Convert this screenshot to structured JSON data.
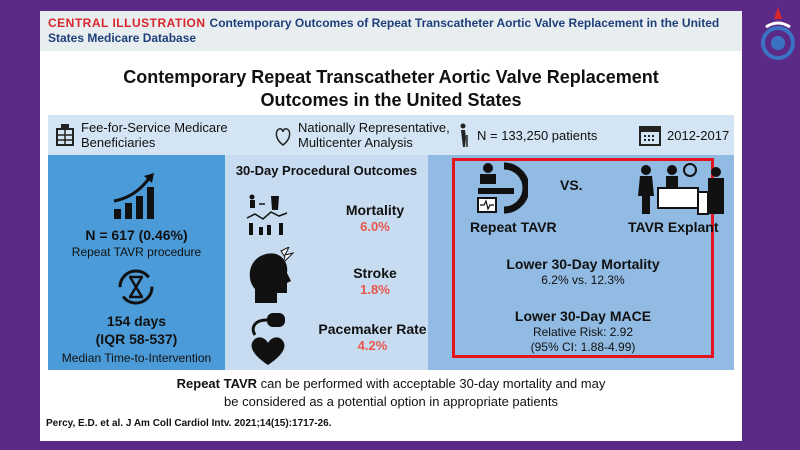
{
  "header": {
    "label": "CENTRAL ILLUSTRATION",
    "title": "Contemporary Outcomes of Repeat Transcatheter Aortic Valve Replacement in the United States Medicare Database"
  },
  "main_title": {
    "line1": "Contemporary Repeat Transcatheter Aortic Valve Replacement",
    "line2": "Outcomes in the United States"
  },
  "info": {
    "medicare_l1": "Fee-for-Service Medicare",
    "medicare_l2": "Beneficiaries",
    "analysis_l1": "Nationally Representative,",
    "analysis_l2": "Multicenter Analysis",
    "patients": "N = 133,250 patients",
    "years": "2012-2017"
  },
  "left": {
    "n": "N = 617 (0.46%)",
    "n_label": "Repeat TAVR procedure",
    "days": "154 days",
    "iqr": "(IQR 58-537)",
    "time_label": "Median Time-to-Intervention"
  },
  "middle": {
    "heading": "30-Day Procedural Outcomes",
    "outcomes": [
      {
        "label": "Mortality",
        "value": "6.0%"
      },
      {
        "label": "Stroke",
        "value": "1.8%"
      },
      {
        "label": "Pacemaker Rate",
        "value": "4.2%"
      }
    ]
  },
  "right": {
    "left_label": "Repeat TAVR",
    "vs": "VS.",
    "right_label": "TAVR Explant",
    "mort_title": "Lower 30-Day Mortality",
    "mort_value": "6.2% vs. 12.3%",
    "mace_title": "Lower 30-Day MACE",
    "mace_rr": "Relative Risk: 2.92",
    "mace_ci": "(95% CI: 1.88-4.99)"
  },
  "conclusion": {
    "bold": "Repeat TAVR",
    "rest1": " can be performed with acceptable 30-day mortality and may",
    "line2": "be considered as a potential option in appropriate patients"
  },
  "citation": "Percy, E.D. et al. J Am Coll Cardiol Intv. 2021;14(15):1717-26.",
  "colors": {
    "accent_red": "#e3141b",
    "purple": "#5b2a86",
    "blue": "#4b9bd9"
  }
}
